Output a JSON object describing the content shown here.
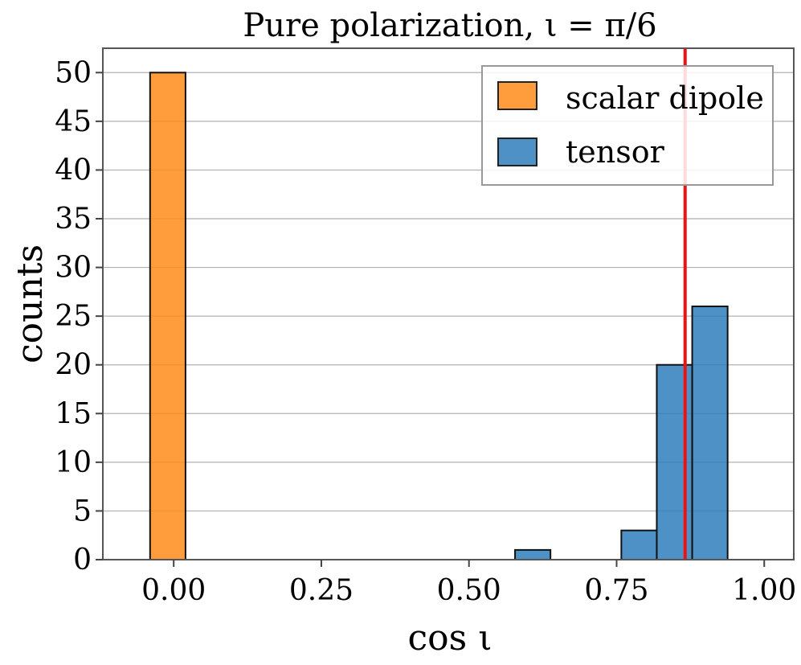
{
  "chart_data": {
    "type": "bar",
    "title": "Pure polarization, ι = π/6",
    "xlabel": "cos ι",
    "ylabel": "counts",
    "xlim": [
      -0.12,
      1.05
    ],
    "ylim": [
      0,
      52.5
    ],
    "xticks": [
      0.0,
      0.25,
      0.5,
      0.75,
      1.0
    ],
    "xtick_labels": [
      "0.00",
      "0.25",
      "0.50",
      "0.75",
      "1.00"
    ],
    "yticks": [
      0,
      5,
      10,
      15,
      20,
      25,
      30,
      35,
      40,
      45,
      50
    ],
    "ytick_labels": [
      "0",
      "5",
      "10",
      "15",
      "20",
      "25",
      "30",
      "35",
      "40",
      "45",
      "50"
    ],
    "grid": "horizontal",
    "legend_position": "top-right",
    "series": [
      {
        "name": "scalar dipole",
        "color": "#ff8c1a",
        "bins": [
          {
            "x0": -0.04,
            "x1": 0.02,
            "count": 50
          }
        ]
      },
      {
        "name": "tensor",
        "color": "#2e7ebc",
        "bins": [
          {
            "x0": 0.578,
            "x1": 0.638,
            "count": 1
          },
          {
            "x0": 0.758,
            "x1": 0.818,
            "count": 3
          },
          {
            "x0": 0.818,
            "x1": 0.878,
            "count": 20
          },
          {
            "x0": 0.878,
            "x1": 0.938,
            "count": 26
          }
        ]
      }
    ],
    "baseline": {
      "from": -0.1,
      "to": 1.0,
      "value": 0
    },
    "reference_line": {
      "x": 0.866,
      "color": "#ee1111"
    }
  }
}
